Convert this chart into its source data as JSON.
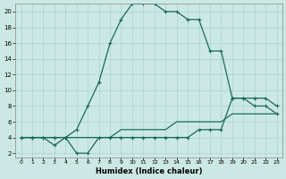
{
  "bg_color": "#cce8e4",
  "line_color": "#1a6b5a",
  "grid_color": "#a8d4d0",
  "xlabel": "Humidex (Indice chaleur)",
  "xlim": [
    -0.5,
    23.5
  ],
  "ylim": [
    1.5,
    21
  ],
  "xticks": [
    0,
    1,
    2,
    3,
    4,
    5,
    6,
    7,
    8,
    9,
    10,
    11,
    12,
    13,
    14,
    15,
    16,
    17,
    18,
    19,
    20,
    21,
    22,
    23
  ],
  "yticks": [
    2,
    4,
    6,
    8,
    10,
    12,
    14,
    16,
    18,
    20
  ],
  "curve1_x": [
    0,
    1,
    2,
    3,
    4,
    5,
    6,
    7,
    8,
    9,
    10,
    11,
    12,
    13,
    14,
    15,
    16,
    17,
    18,
    19,
    20,
    21,
    22,
    23
  ],
  "curve1_y": [
    4,
    4,
    4,
    4,
    4,
    5,
    8,
    11,
    16,
    19,
    21,
    21,
    21,
    20,
    20,
    19,
    19,
    15,
    15,
    9,
    9,
    8,
    8,
    7
  ],
  "curve2_x": [
    0,
    1,
    2,
    3,
    4,
    5,
    6,
    7,
    8,
    9,
    10,
    11,
    12,
    13,
    14,
    15,
    16,
    17,
    18,
    19,
    20,
    21,
    22,
    23
  ],
  "curve2_y": [
    4,
    4,
    4,
    3,
    4,
    2,
    2,
    4,
    4,
    4,
    4,
    4,
    4,
    4,
    4,
    4,
    5,
    5,
    5,
    9,
    9,
    9,
    9,
    8
  ],
  "curve3_x": [
    0,
    1,
    2,
    3,
    4,
    5,
    6,
    7,
    8,
    9,
    10,
    11,
    12,
    13,
    14,
    15,
    16,
    17,
    18,
    19,
    20,
    21,
    22,
    23
  ],
  "curve3_y": [
    4,
    4,
    4,
    4,
    4,
    4,
    4,
    4,
    4,
    5,
    5,
    5,
    5,
    5,
    6,
    6,
    6,
    6,
    6,
    7,
    7,
    7,
    7,
    7
  ]
}
